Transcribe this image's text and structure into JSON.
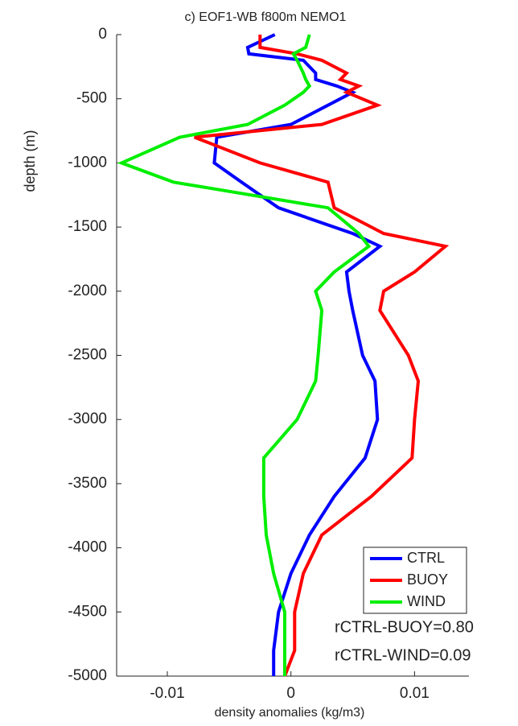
{
  "chart_data": {
    "type": "line",
    "title": "c) EOF1-WB f800m NEMO1",
    "x_label": "density anomalies (kg/m3)",
    "y_label": "depth (m)",
    "y": [
      0,
      -100,
      -150,
      -200,
      -300,
      -350,
      -400,
      -450,
      -550,
      -700,
      -800,
      -1000,
      -1150,
      -1350,
      -1550,
      -1650,
      -1850,
      -2000,
      -2150,
      -2500,
      -2700,
      -3000,
      -3300,
      -3600,
      -3900,
      -4200,
      -4500,
      -4800,
      -5000
    ],
    "series": [
      {
        "name": "CTRL",
        "color": "#0000ff",
        "values": [
          -0.0013,
          -0.0035,
          -0.0034,
          0.001,
          0.002,
          0.002,
          0.0037,
          0.005,
          0.003,
          0.0,
          -0.006,
          -0.0062,
          -0.004,
          -0.001,
          0.005,
          0.0072,
          0.0045,
          0.0047,
          0.005,
          0.0058,
          0.0068,
          0.007,
          0.006,
          0.0035,
          0.0015,
          0.0,
          -0.001,
          -0.0014,
          -0.0014
        ]
      },
      {
        "name": "BUOY",
        "color": "#ff0000",
        "values": [
          -0.0025,
          -0.0025,
          0.0005,
          0.0025,
          0.0045,
          0.004,
          0.0055,
          0.0045,
          0.007,
          0.0025,
          -0.0078,
          -0.0025,
          0.003,
          0.0035,
          0.0075,
          0.0125,
          0.01,
          0.0075,
          0.0072,
          0.0095,
          0.0103,
          0.01,
          0.0098,
          0.0065,
          0.0025,
          0.001,
          0.0003,
          0.0003,
          -0.0005
        ]
      },
      {
        "name": "WIND",
        "color": "#00ee00",
        "values": [
          0.0015,
          0.0012,
          0.0002,
          0.0005,
          0.001,
          0.0012,
          0.0015,
          0.001,
          -0.0005,
          -0.0035,
          -0.009,
          -0.0137,
          -0.0095,
          0.003,
          0.0055,
          0.0063,
          0.0035,
          0.002,
          0.0025,
          0.0022,
          0.002,
          0.0005,
          -0.0022,
          -0.0022,
          -0.002,
          -0.0014,
          -0.0005,
          -0.0005,
          -0.0005
        ]
      }
    ],
    "xlim": [
      -0.0141,
      0.0144
    ],
    "xticks": [
      -0.01,
      0,
      0.01
    ],
    "ylim": [
      -5000,
      0
    ],
    "yticks": [
      0,
      -500,
      -1000,
      -1500,
      -2000,
      -2500,
      -3000,
      -3500,
      -4000,
      -4500,
      -5000
    ],
    "annotations": [
      "rCTRL-BUOY=0.80",
      "rCTRL-WIND=0.09"
    ],
    "legend": "lower right"
  }
}
